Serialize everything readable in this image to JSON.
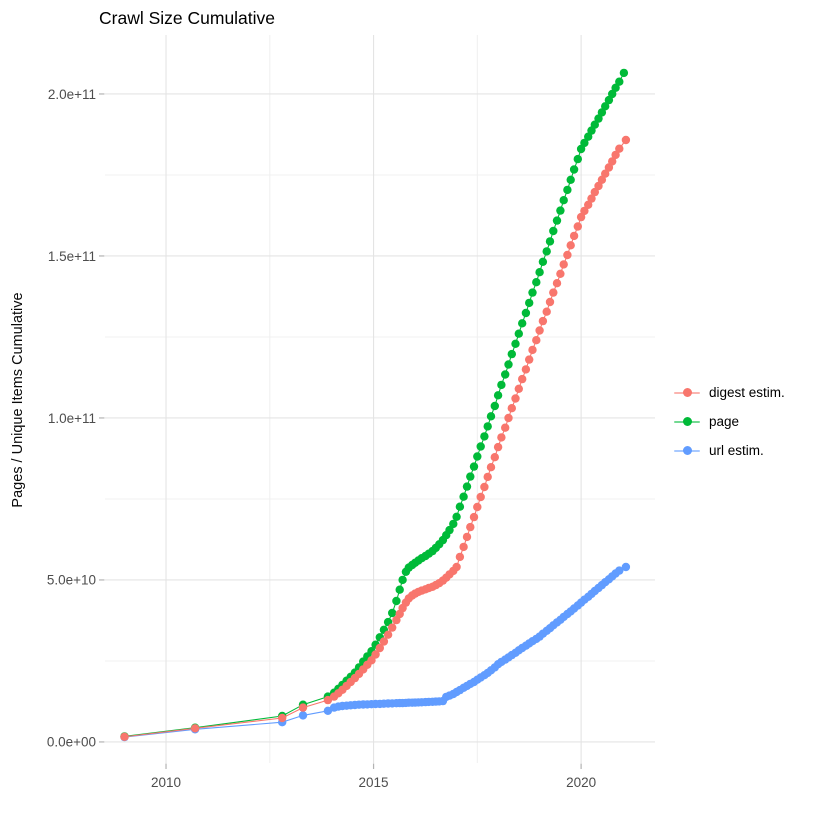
{
  "chart_data": {
    "type": "scatter",
    "title": "Crawl Size Cumulative",
    "xlabel": "",
    "ylabel": "Pages / Unique Items Cumulative",
    "value_unit": "1e9 (points stored as [year, billions])",
    "xlim": [
      2008.53,
      2021.78
    ],
    "ylim_e9": [
      -6.5,
      218.2
    ],
    "grid": true,
    "legend_position": "right",
    "x_ticks": [
      {
        "value": 2010,
        "label": "2010"
      },
      {
        "value": 2015,
        "label": "2015"
      },
      {
        "value": 2020,
        "label": "2020"
      }
    ],
    "y_ticks": [
      {
        "value_e9": 0,
        "label": "0.0e+00"
      },
      {
        "value_e9": 50,
        "label": "5.0e+10"
      },
      {
        "value_e9": 100,
        "label": "1.0e+11"
      },
      {
        "value_e9": 150,
        "label": "1.5e+11"
      },
      {
        "value_e9": 200,
        "label": "2.0e+11"
      }
    ],
    "x_minor": [
      2012.5,
      2017.5
    ],
    "y_minor_e9": [
      25,
      75,
      125,
      175
    ],
    "draw_order": [
      "url estim.",
      "page",
      "digest estim."
    ],
    "series": [
      {
        "name": "digest estim.",
        "color": "#F8766D",
        "points": [
          [
            2009,
            1.6
          ],
          [
            2010.7,
            4.2
          ],
          [
            2012.8,
            7.4
          ],
          [
            2013.3,
            10.6
          ],
          [
            2013.9,
            12.9
          ],
          [
            2014.05,
            14
          ],
          [
            2014.15,
            15
          ],
          [
            2014.25,
            16.1
          ],
          [
            2014.35,
            17.3
          ],
          [
            2014.45,
            18.5
          ],
          [
            2014.55,
            19.7
          ],
          [
            2014.65,
            21
          ],
          [
            2014.75,
            22.4
          ],
          [
            2014.85,
            23.8
          ],
          [
            2014.95,
            25.2
          ],
          [
            2015.05,
            27
          ],
          [
            2015.15,
            29
          ],
          [
            2015.25,
            31
          ],
          [
            2015.35,
            33.1
          ],
          [
            2015.45,
            35.3
          ],
          [
            2015.55,
            37.6
          ],
          [
            2015.63,
            39.5
          ],
          [
            2015.7,
            41.3
          ],
          [
            2015.78,
            43
          ],
          [
            2015.85,
            44.3
          ],
          [
            2015.93,
            45.2
          ],
          [
            2016,
            45.8
          ],
          [
            2016.08,
            46.3
          ],
          [
            2016.16,
            46.7
          ],
          [
            2016.25,
            47.1
          ],
          [
            2016.33,
            47.5
          ],
          [
            2016.42,
            47.9
          ],
          [
            2016.5,
            48.4
          ],
          [
            2016.58,
            49
          ],
          [
            2016.67,
            49.8
          ],
          [
            2016.75,
            50.7
          ],
          [
            2016.83,
            51.7
          ],
          [
            2016.92,
            52.8
          ],
          [
            2017,
            54
          ],
          [
            2017.08,
            57.1
          ],
          [
            2017.17,
            60.2
          ],
          [
            2017.25,
            63.3
          ],
          [
            2017.33,
            66.3
          ],
          [
            2017.42,
            69.4
          ],
          [
            2017.5,
            72.5
          ],
          [
            2017.58,
            75.6
          ],
          [
            2017.67,
            78.7
          ],
          [
            2017.75,
            81.8
          ],
          [
            2017.83,
            84.8
          ],
          [
            2017.92,
            87.9
          ],
          [
            2018,
            91
          ],
          [
            2018.08,
            94
          ],
          [
            2018.17,
            97
          ],
          [
            2018.25,
            100
          ],
          [
            2018.33,
            103
          ],
          [
            2018.42,
            106
          ],
          [
            2018.5,
            109
          ],
          [
            2018.58,
            112
          ],
          [
            2018.67,
            115
          ],
          [
            2018.75,
            118
          ],
          [
            2018.83,
            121
          ],
          [
            2018.92,
            124
          ],
          [
            2019,
            127
          ],
          [
            2019.08,
            129.9
          ],
          [
            2019.17,
            132.8
          ],
          [
            2019.25,
            135.8
          ],
          [
            2019.33,
            138.7
          ],
          [
            2019.42,
            141.6
          ],
          [
            2019.5,
            144.5
          ],
          [
            2019.58,
            147.4
          ],
          [
            2019.67,
            150.3
          ],
          [
            2019.75,
            153.3
          ],
          [
            2019.83,
            156.2
          ],
          [
            2019.92,
            159.1
          ],
          [
            2020,
            162
          ],
          [
            2020.08,
            163.9
          ],
          [
            2020.17,
            165.8
          ],
          [
            2020.25,
            167.7
          ],
          [
            2020.33,
            169.7
          ],
          [
            2020.42,
            171.6
          ],
          [
            2020.5,
            173.5
          ],
          [
            2020.58,
            175.4
          ],
          [
            2020.67,
            177.3
          ],
          [
            2020.75,
            179.2
          ],
          [
            2020.83,
            181.2
          ],
          [
            2020.92,
            183.1
          ],
          [
            2021.08,
            185.8
          ]
        ]
      },
      {
        "name": "page",
        "color": "#00BA38",
        "points": [
          [
            2009,
            1.7
          ],
          [
            2010.7,
            4.4
          ],
          [
            2012.8,
            8
          ],
          [
            2013.3,
            11.5
          ],
          [
            2013.9,
            14
          ],
          [
            2014.05,
            15.2
          ],
          [
            2014.15,
            16.4
          ],
          [
            2014.25,
            17.6
          ],
          [
            2014.35,
            18.9
          ],
          [
            2014.45,
            20.1
          ],
          [
            2014.55,
            21.4
          ],
          [
            2014.65,
            23
          ],
          [
            2014.75,
            24.8
          ],
          [
            2014.85,
            26.4
          ],
          [
            2014.95,
            28
          ],
          [
            2015.05,
            30
          ],
          [
            2015.15,
            32.3
          ],
          [
            2015.25,
            34.6
          ],
          [
            2015.35,
            37
          ],
          [
            2015.45,
            39.8
          ],
          [
            2015.55,
            43.5
          ],
          [
            2015.63,
            47
          ],
          [
            2015.7,
            50
          ],
          [
            2015.78,
            52.5
          ],
          [
            2015.85,
            53.8
          ],
          [
            2015.93,
            54.6
          ],
          [
            2016,
            55.3
          ],
          [
            2016.08,
            56
          ],
          [
            2016.16,
            56.7
          ],
          [
            2016.25,
            57.4
          ],
          [
            2016.33,
            58.1
          ],
          [
            2016.42,
            58.9
          ],
          [
            2016.5,
            59.9
          ],
          [
            2016.58,
            61
          ],
          [
            2016.67,
            62.3
          ],
          [
            2016.75,
            63.8
          ],
          [
            2016.83,
            65.4
          ],
          [
            2016.92,
            67.3
          ],
          [
            2017,
            69.5
          ],
          [
            2017.08,
            72.6
          ],
          [
            2017.17,
            75.7
          ],
          [
            2017.25,
            78.8
          ],
          [
            2017.33,
            81.9
          ],
          [
            2017.42,
            85
          ],
          [
            2017.5,
            88.1
          ],
          [
            2017.58,
            91.2
          ],
          [
            2017.67,
            94.3
          ],
          [
            2017.75,
            97.4
          ],
          [
            2017.83,
            100.5
          ],
          [
            2017.92,
            103.7
          ],
          [
            2018,
            107
          ],
          [
            2018.08,
            110.2
          ],
          [
            2018.17,
            113.4
          ],
          [
            2018.25,
            116.5
          ],
          [
            2018.33,
            119.7
          ],
          [
            2018.42,
            122.9
          ],
          [
            2018.5,
            126
          ],
          [
            2018.58,
            129.2
          ],
          [
            2018.67,
            132.4
          ],
          [
            2018.75,
            135.5
          ],
          [
            2018.83,
            138.7
          ],
          [
            2018.92,
            141.9
          ],
          [
            2019,
            145
          ],
          [
            2019.08,
            148.2
          ],
          [
            2019.17,
            151.4
          ],
          [
            2019.25,
            154.5
          ],
          [
            2019.33,
            157.7
          ],
          [
            2019.42,
            160.9
          ],
          [
            2019.5,
            164
          ],
          [
            2019.58,
            167.2
          ],
          [
            2019.67,
            170.4
          ],
          [
            2019.75,
            173.5
          ],
          [
            2019.83,
            176.7
          ],
          [
            2019.92,
            179.9
          ],
          [
            2020,
            183
          ],
          [
            2020.08,
            184.9
          ],
          [
            2020.17,
            186.8
          ],
          [
            2020.25,
            188.7
          ],
          [
            2020.33,
            190.5
          ],
          [
            2020.42,
            192.4
          ],
          [
            2020.5,
            194.3
          ],
          [
            2020.58,
            196.2
          ],
          [
            2020.67,
            198.1
          ],
          [
            2020.75,
            200
          ],
          [
            2020.83,
            201.9
          ],
          [
            2020.92,
            203.8
          ],
          [
            2021.03,
            206.5
          ]
        ]
      },
      {
        "name": "url estim.",
        "color": "#619CFF",
        "points": [
          [
            2009,
            1.5
          ],
          [
            2010.7,
            3.9
          ],
          [
            2012.8,
            6.1
          ],
          [
            2013.3,
            8.2
          ],
          [
            2013.9,
            9.6
          ],
          [
            2014.05,
            10.6
          ],
          [
            2014.15,
            10.9
          ],
          [
            2014.25,
            11.1
          ],
          [
            2014.35,
            11.2
          ],
          [
            2014.45,
            11.3
          ],
          [
            2014.55,
            11.4
          ],
          [
            2014.65,
            11.5
          ],
          [
            2014.75,
            11.55
          ],
          [
            2014.85,
            11.6
          ],
          [
            2014.95,
            11.65
          ],
          [
            2015.05,
            11.7
          ],
          [
            2015.15,
            11.75
          ],
          [
            2015.25,
            11.8
          ],
          [
            2015.35,
            11.85
          ],
          [
            2015.45,
            11.9
          ],
          [
            2015.55,
            11.95
          ],
          [
            2015.63,
            12
          ],
          [
            2015.7,
            12
          ],
          [
            2015.78,
            12.05
          ],
          [
            2015.85,
            12.1
          ],
          [
            2015.93,
            12.1
          ],
          [
            2016,
            12.15
          ],
          [
            2016.08,
            12.2
          ],
          [
            2016.16,
            12.25
          ],
          [
            2016.25,
            12.3
          ],
          [
            2016.33,
            12.35
          ],
          [
            2016.42,
            12.4
          ],
          [
            2016.5,
            12.45
          ],
          [
            2016.58,
            12.5
          ],
          [
            2016.67,
            12.6
          ],
          [
            2016.75,
            13.9
          ],
          [
            2016.83,
            14.3
          ],
          [
            2016.92,
            14.8
          ],
          [
            2017,
            15.4
          ],
          [
            2017.08,
            16
          ],
          [
            2017.17,
            16.7
          ],
          [
            2017.25,
            17.3
          ],
          [
            2017.33,
            17.9
          ],
          [
            2017.42,
            18.5
          ],
          [
            2017.5,
            19.2
          ],
          [
            2017.58,
            19.9
          ],
          [
            2017.67,
            20.6
          ],
          [
            2017.75,
            21.3
          ],
          [
            2017.83,
            22.1
          ],
          [
            2017.92,
            23
          ],
          [
            2018,
            24
          ],
          [
            2018.08,
            24.7
          ],
          [
            2018.17,
            25.4
          ],
          [
            2018.25,
            26.1
          ],
          [
            2018.33,
            26.8
          ],
          [
            2018.42,
            27.5
          ],
          [
            2018.5,
            28.3
          ],
          [
            2018.58,
            29
          ],
          [
            2018.67,
            29.7
          ],
          [
            2018.75,
            30.4
          ],
          [
            2018.83,
            31.1
          ],
          [
            2018.92,
            31.8
          ],
          [
            2019,
            32.5
          ],
          [
            2019.08,
            33.4
          ],
          [
            2019.17,
            34.3
          ],
          [
            2019.25,
            35.1
          ],
          [
            2019.33,
            36
          ],
          [
            2019.42,
            36.9
          ],
          [
            2019.5,
            37.7
          ],
          [
            2019.58,
            38.6
          ],
          [
            2019.67,
            39.5
          ],
          [
            2019.75,
            40.3
          ],
          [
            2019.83,
            41.2
          ],
          [
            2019.92,
            42.1
          ],
          [
            2020,
            43
          ],
          [
            2020.08,
            43.9
          ],
          [
            2020.17,
            44.8
          ],
          [
            2020.25,
            45.7
          ],
          [
            2020.33,
            46.6
          ],
          [
            2020.42,
            47.5
          ],
          [
            2020.5,
            48.4
          ],
          [
            2020.58,
            49.3
          ],
          [
            2020.67,
            50.2
          ],
          [
            2020.75,
            51.1
          ],
          [
            2020.83,
            52
          ],
          [
            2020.92,
            52.9
          ],
          [
            2021.08,
            54
          ]
        ]
      }
    ],
    "style": {
      "background": "#FFFFFF",
      "grid_major_color": "#E4E4E4",
      "grid_minor_color": "#F0F0F0",
      "tick_color": "#B3B3B3",
      "tick_label_color": "#4D4D4D",
      "point_radius": 4.2
    }
  }
}
